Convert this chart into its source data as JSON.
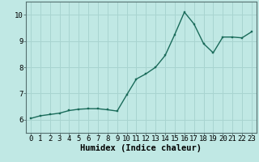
{
  "x": [
    0,
    1,
    2,
    3,
    4,
    5,
    6,
    7,
    8,
    9,
    10,
    11,
    12,
    13,
    14,
    15,
    16,
    17,
    18,
    19,
    20,
    21,
    22,
    23
  ],
  "y": [
    6.05,
    6.15,
    6.2,
    6.25,
    6.35,
    6.4,
    6.42,
    6.42,
    6.38,
    6.33,
    6.95,
    7.55,
    7.75,
    8.0,
    8.45,
    9.25,
    10.1,
    9.65,
    8.9,
    8.55,
    9.15,
    9.15,
    9.12,
    9.35
  ],
  "line_color": "#1a6b5a",
  "marker": "s",
  "markersize": 2.0,
  "linewidth": 1.0,
  "xlabel": "Humidex (Indice chaleur)",
  "ylim": [
    5.5,
    10.5
  ],
  "xlim": [
    -0.5,
    23.5
  ],
  "yticks": [
    6,
    7,
    8,
    9,
    10
  ],
  "xticks": [
    0,
    1,
    2,
    3,
    4,
    5,
    6,
    7,
    8,
    9,
    10,
    11,
    12,
    13,
    14,
    15,
    16,
    17,
    18,
    19,
    20,
    21,
    22,
    23
  ],
  "bg_color": "#c0e8e4",
  "grid_color": "#a8d4d0",
  "tick_label_fontsize": 6.5,
  "xlabel_fontsize": 7.5
}
